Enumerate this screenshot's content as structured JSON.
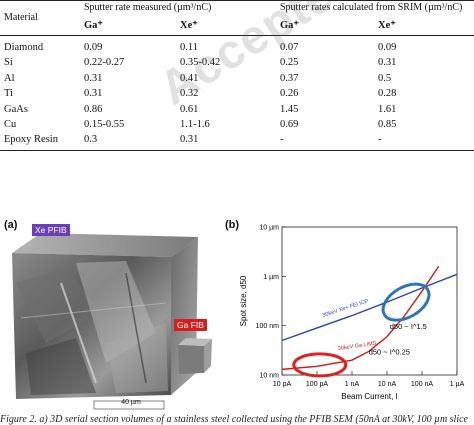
{
  "table": {
    "col_material": "Material",
    "group_measured": "Sputter rate measured (µm³/nC)",
    "group_srim": "Sputter rates calculated from SRIM (µm³/nC)",
    "sub_ga": "Ga⁺",
    "sub_xe": "Xe⁺",
    "rows": [
      {
        "material": "Diamond",
        "m_ga": "0.09",
        "m_xe": "0.11",
        "s_ga": "0.07",
        "s_xe": "0.09"
      },
      {
        "material": "Si",
        "m_ga": "0.22-0.27",
        "m_xe": "0.35-0.42",
        "s_ga": "0.25",
        "s_xe": "0.31"
      },
      {
        "material": "Al",
        "m_ga": "0.31",
        "m_xe": "0.41",
        "s_ga": "0.37",
        "s_xe": "0.5"
      },
      {
        "material": "Ti",
        "m_ga": "0.31",
        "m_xe": "0.32",
        "s_ga": "0.26",
        "s_xe": "0.28"
      },
      {
        "material": "GaAs",
        "m_ga": "0.86",
        "m_xe": "0.61",
        "s_ga": "1.45",
        "s_xe": "1.61"
      },
      {
        "material": "Cu",
        "m_ga": "0.15-0.55",
        "m_xe": "1.1-1.6",
        "s_ga": "0.69",
        "s_xe": "0.85"
      },
      {
        "material": "Epoxy Resin",
        "m_ga": "0.3",
        "m_xe": "0.31",
        "s_ga": "-",
        "s_xe": "-"
      }
    ]
  },
  "watermark": "Accepted manuscript",
  "figure": {
    "panel_a": {
      "label": "(a)",
      "xe_tag": "Xe PFIB",
      "ga_tag": "Ga FIB",
      "scalebar": "40 µm",
      "xe_color": "#6a3fb5",
      "ga_color": "#d31f1f"
    },
    "panel_b": {
      "label": "(b)"
    }
  },
  "chart_data": {
    "type": "line",
    "xlabel": "Beam Current, I",
    "ylabel": "Spot size, d50",
    "x_scale": "log",
    "y_scale": "log",
    "x_ticks": [
      "10 pA",
      "100 pA",
      "1 nA",
      "10 nA",
      "100 nA",
      "1 µA"
    ],
    "y_ticks": [
      "10 nm",
      "100 nm",
      "1 µm",
      "10 µm"
    ],
    "xlim": [
      "10 pA",
      "1 µA"
    ],
    "ylim": [
      "10 nm",
      "10 µm"
    ],
    "series": [
      {
        "name": "30keV Xe+ FEI ICP",
        "color": "#2846b4",
        "x_A": [
          1e-11,
          1e-10,
          1e-09,
          1e-08,
          1e-07,
          1e-06
        ],
        "y_m": [
          5e-08,
          9e-08,
          1.6e-07,
          3e-07,
          5.8e-07,
          1.1e-06
        ]
      },
      {
        "name": "30keV Ga LIMS",
        "color": "#cc1a1a",
        "x_A": [
          1e-11,
          1e-10,
          1e-09,
          3e-09,
          1e-08,
          3e-08,
          1e-07,
          3e-07
        ],
        "y_m": [
          1.3e-08,
          1.5e-08,
          2e-08,
          3e-08,
          6e-08,
          1.5e-07,
          5e-07,
          1.6e-06
        ]
      }
    ],
    "annotations": [
      {
        "text": "d50 ~ I^1.5"
      },
      {
        "text": "d50 ~ I^0.25"
      }
    ],
    "highlight_colors": {
      "blue": "#2e75b6",
      "red": "#e02020"
    }
  },
  "caption": "Figure 2. a) 3D serial section volumes of a stainless steel collected using the PFIB SEM (50nA at 30kV, 100 µm slice"
}
